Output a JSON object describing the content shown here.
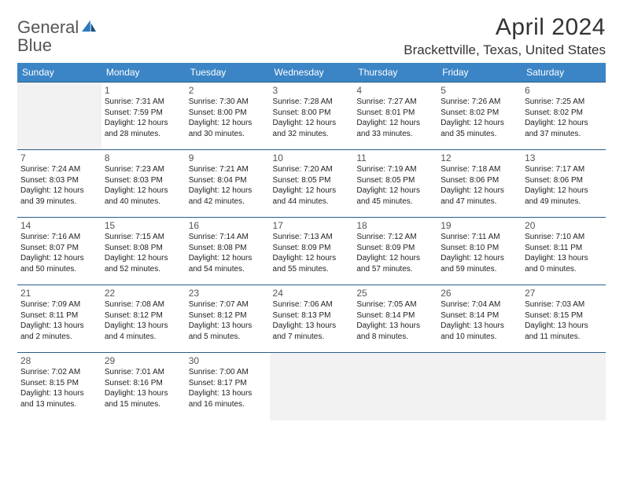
{
  "brand": {
    "part1": "General",
    "part2": "Blue"
  },
  "header": {
    "month": "April 2024",
    "location": "Brackettville, Texas, United States"
  },
  "colors": {
    "header_bg": "#3b85c6",
    "row_border": "#2a5d8a",
    "empty_bg": "#f2f2f2",
    "brand_blue": "#2f7bbf"
  },
  "weekdays": [
    "Sunday",
    "Monday",
    "Tuesday",
    "Wednesday",
    "Thursday",
    "Friday",
    "Saturday"
  ],
  "weeks": [
    [
      null,
      {
        "n": "1",
        "sr": "Sunrise: 7:31 AM",
        "ss": "Sunset: 7:59 PM",
        "d1": "Daylight: 12 hours",
        "d2": "and 28 minutes."
      },
      {
        "n": "2",
        "sr": "Sunrise: 7:30 AM",
        "ss": "Sunset: 8:00 PM",
        "d1": "Daylight: 12 hours",
        "d2": "and 30 minutes."
      },
      {
        "n": "3",
        "sr": "Sunrise: 7:28 AM",
        "ss": "Sunset: 8:00 PM",
        "d1": "Daylight: 12 hours",
        "d2": "and 32 minutes."
      },
      {
        "n": "4",
        "sr": "Sunrise: 7:27 AM",
        "ss": "Sunset: 8:01 PM",
        "d1": "Daylight: 12 hours",
        "d2": "and 33 minutes."
      },
      {
        "n": "5",
        "sr": "Sunrise: 7:26 AM",
        "ss": "Sunset: 8:02 PM",
        "d1": "Daylight: 12 hours",
        "d2": "and 35 minutes."
      },
      {
        "n": "6",
        "sr": "Sunrise: 7:25 AM",
        "ss": "Sunset: 8:02 PM",
        "d1": "Daylight: 12 hours",
        "d2": "and 37 minutes."
      }
    ],
    [
      {
        "n": "7",
        "sr": "Sunrise: 7:24 AM",
        "ss": "Sunset: 8:03 PM",
        "d1": "Daylight: 12 hours",
        "d2": "and 39 minutes."
      },
      {
        "n": "8",
        "sr": "Sunrise: 7:23 AM",
        "ss": "Sunset: 8:03 PM",
        "d1": "Daylight: 12 hours",
        "d2": "and 40 minutes."
      },
      {
        "n": "9",
        "sr": "Sunrise: 7:21 AM",
        "ss": "Sunset: 8:04 PM",
        "d1": "Daylight: 12 hours",
        "d2": "and 42 minutes."
      },
      {
        "n": "10",
        "sr": "Sunrise: 7:20 AM",
        "ss": "Sunset: 8:05 PM",
        "d1": "Daylight: 12 hours",
        "d2": "and 44 minutes."
      },
      {
        "n": "11",
        "sr": "Sunrise: 7:19 AM",
        "ss": "Sunset: 8:05 PM",
        "d1": "Daylight: 12 hours",
        "d2": "and 45 minutes."
      },
      {
        "n": "12",
        "sr": "Sunrise: 7:18 AM",
        "ss": "Sunset: 8:06 PM",
        "d1": "Daylight: 12 hours",
        "d2": "and 47 minutes."
      },
      {
        "n": "13",
        "sr": "Sunrise: 7:17 AM",
        "ss": "Sunset: 8:06 PM",
        "d1": "Daylight: 12 hours",
        "d2": "and 49 minutes."
      }
    ],
    [
      {
        "n": "14",
        "sr": "Sunrise: 7:16 AM",
        "ss": "Sunset: 8:07 PM",
        "d1": "Daylight: 12 hours",
        "d2": "and 50 minutes."
      },
      {
        "n": "15",
        "sr": "Sunrise: 7:15 AM",
        "ss": "Sunset: 8:08 PM",
        "d1": "Daylight: 12 hours",
        "d2": "and 52 minutes."
      },
      {
        "n": "16",
        "sr": "Sunrise: 7:14 AM",
        "ss": "Sunset: 8:08 PM",
        "d1": "Daylight: 12 hours",
        "d2": "and 54 minutes."
      },
      {
        "n": "17",
        "sr": "Sunrise: 7:13 AM",
        "ss": "Sunset: 8:09 PM",
        "d1": "Daylight: 12 hours",
        "d2": "and 55 minutes."
      },
      {
        "n": "18",
        "sr": "Sunrise: 7:12 AM",
        "ss": "Sunset: 8:09 PM",
        "d1": "Daylight: 12 hours",
        "d2": "and 57 minutes."
      },
      {
        "n": "19",
        "sr": "Sunrise: 7:11 AM",
        "ss": "Sunset: 8:10 PM",
        "d1": "Daylight: 12 hours",
        "d2": "and 59 minutes."
      },
      {
        "n": "20",
        "sr": "Sunrise: 7:10 AM",
        "ss": "Sunset: 8:11 PM",
        "d1": "Daylight: 13 hours",
        "d2": "and 0 minutes."
      }
    ],
    [
      {
        "n": "21",
        "sr": "Sunrise: 7:09 AM",
        "ss": "Sunset: 8:11 PM",
        "d1": "Daylight: 13 hours",
        "d2": "and 2 minutes."
      },
      {
        "n": "22",
        "sr": "Sunrise: 7:08 AM",
        "ss": "Sunset: 8:12 PM",
        "d1": "Daylight: 13 hours",
        "d2": "and 4 minutes."
      },
      {
        "n": "23",
        "sr": "Sunrise: 7:07 AM",
        "ss": "Sunset: 8:12 PM",
        "d1": "Daylight: 13 hours",
        "d2": "and 5 minutes."
      },
      {
        "n": "24",
        "sr": "Sunrise: 7:06 AM",
        "ss": "Sunset: 8:13 PM",
        "d1": "Daylight: 13 hours",
        "d2": "and 7 minutes."
      },
      {
        "n": "25",
        "sr": "Sunrise: 7:05 AM",
        "ss": "Sunset: 8:14 PM",
        "d1": "Daylight: 13 hours",
        "d2": "and 8 minutes."
      },
      {
        "n": "26",
        "sr": "Sunrise: 7:04 AM",
        "ss": "Sunset: 8:14 PM",
        "d1": "Daylight: 13 hours",
        "d2": "and 10 minutes."
      },
      {
        "n": "27",
        "sr": "Sunrise: 7:03 AM",
        "ss": "Sunset: 8:15 PM",
        "d1": "Daylight: 13 hours",
        "d2": "and 11 minutes."
      }
    ],
    [
      {
        "n": "28",
        "sr": "Sunrise: 7:02 AM",
        "ss": "Sunset: 8:15 PM",
        "d1": "Daylight: 13 hours",
        "d2": "and 13 minutes."
      },
      {
        "n": "29",
        "sr": "Sunrise: 7:01 AM",
        "ss": "Sunset: 8:16 PM",
        "d1": "Daylight: 13 hours",
        "d2": "and 15 minutes."
      },
      {
        "n": "30",
        "sr": "Sunrise: 7:00 AM",
        "ss": "Sunset: 8:17 PM",
        "d1": "Daylight: 13 hours",
        "d2": "and 16 minutes."
      },
      null,
      null,
      null,
      null
    ]
  ]
}
